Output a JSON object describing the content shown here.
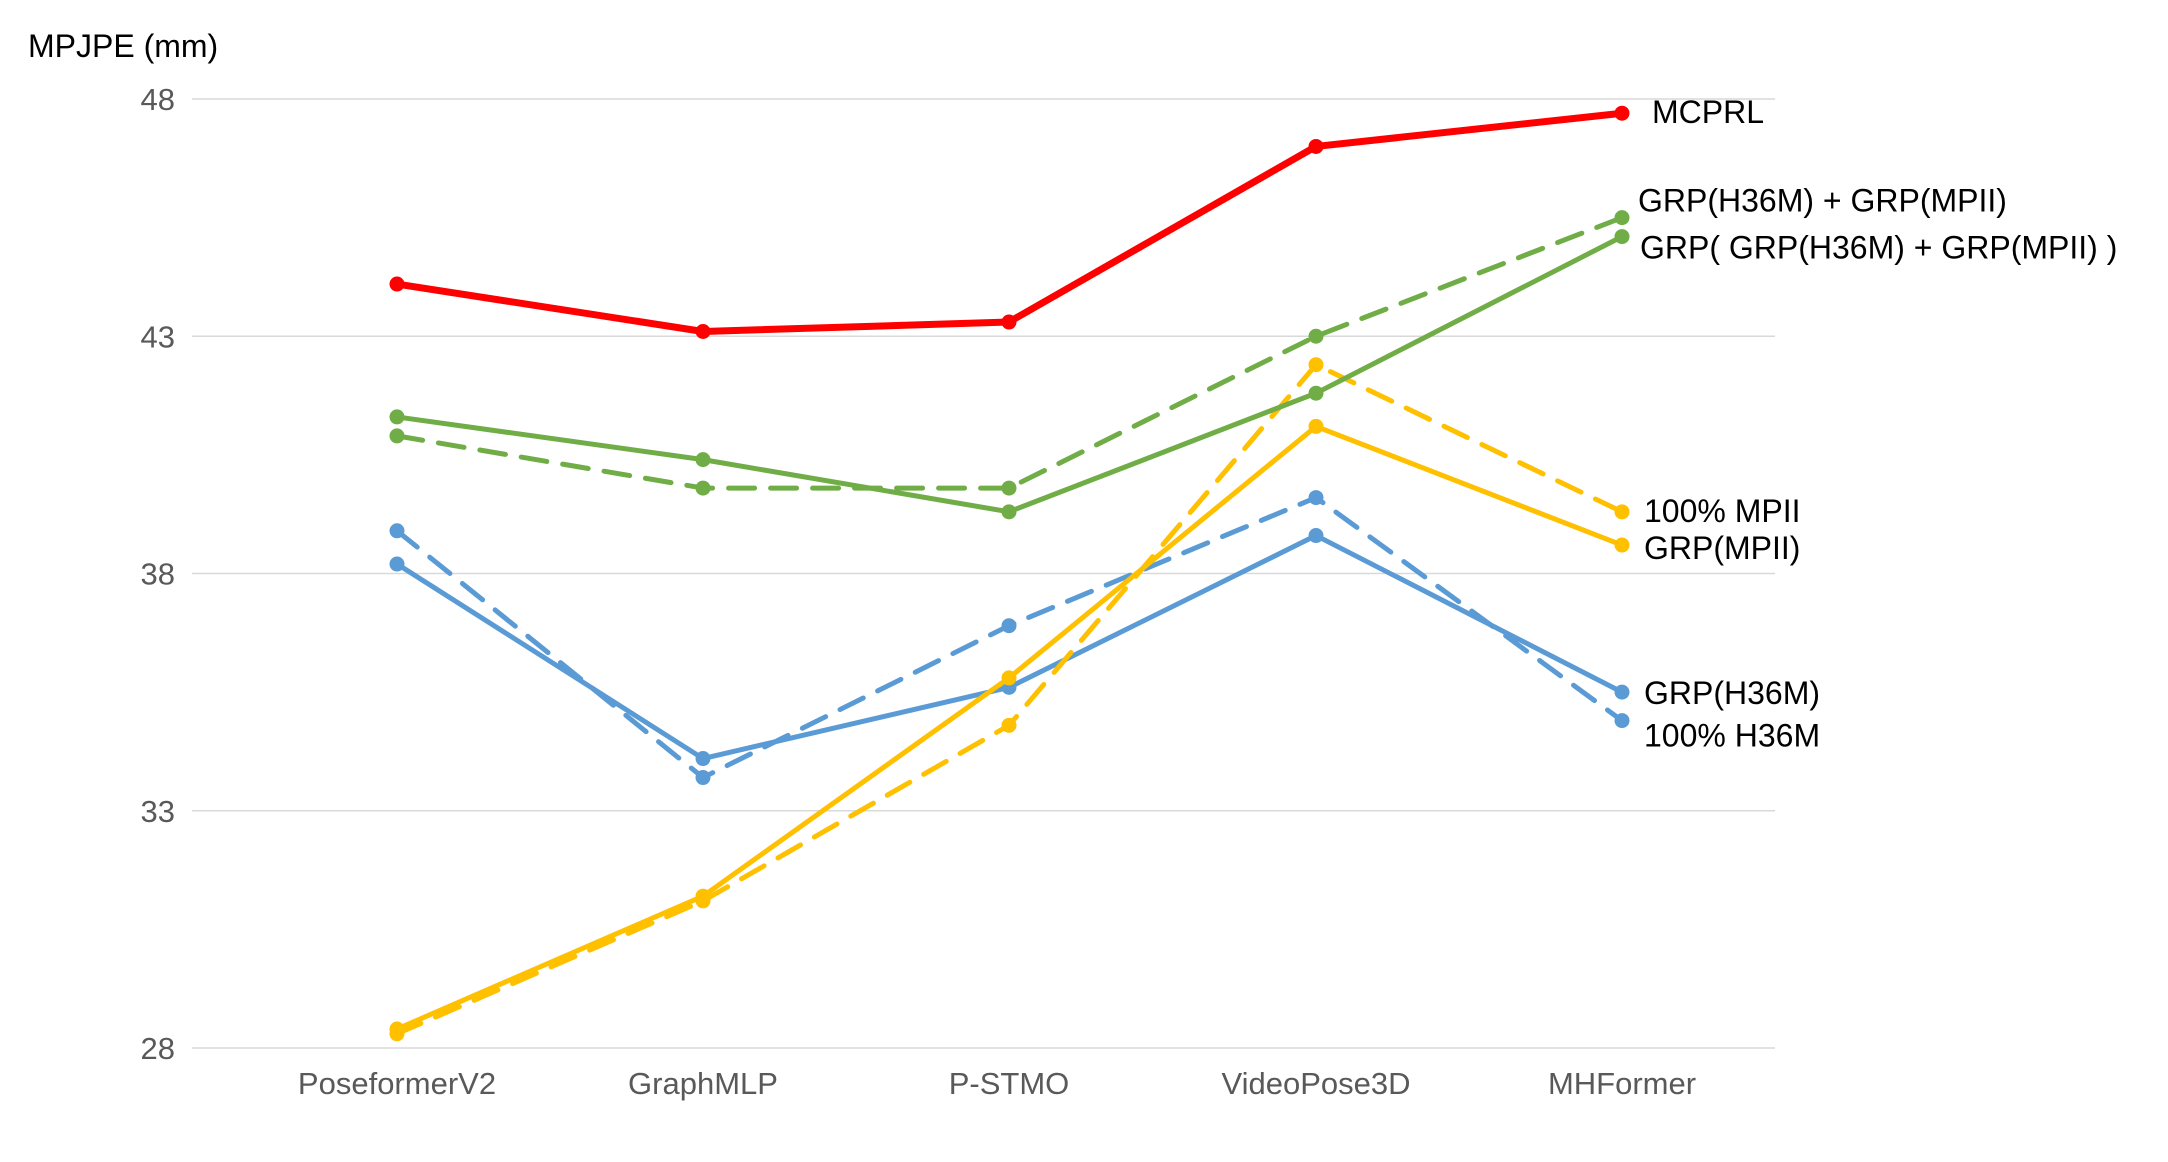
{
  "chart_data": {
    "type": "line",
    "ylabel": "MPJPE (mm)",
    "categories": [
      "PoseformerV2",
      "GraphMLP",
      "P-STMO",
      "VideoPose3D",
      "MHFormer"
    ],
    "ylim": [
      28,
      48
    ],
    "yticks": [
      28,
      33,
      38,
      43,
      48
    ],
    "grid": "horizontal",
    "series": [
      {
        "name": "MCPRL",
        "color": "#FF0000",
        "dash": false,
        "values": [
          44.1,
          43.1,
          43.3,
          47.0,
          47.7
        ]
      },
      {
        "name": "GRP(H36M) + GRP(MPII)",
        "color": "#70AD47",
        "dash": true,
        "values": [
          40.9,
          39.8,
          39.8,
          43.0,
          45.5
        ]
      },
      {
        "name": "GRP( GRP(H36M) + GRP(MPII) )",
        "color": "#70AD47",
        "dash": false,
        "values": [
          41.3,
          40.4,
          39.3,
          41.8,
          45.1
        ]
      },
      {
        "name": "100% MPII",
        "color": "#FFC000",
        "dash": true,
        "values": [
          28.3,
          31.1,
          34.8,
          42.4,
          39.3
        ]
      },
      {
        "name": "GRP(MPII)",
        "color": "#FFC000",
        "dash": false,
        "values": [
          28.4,
          31.2,
          35.8,
          41.1,
          38.6
        ]
      },
      {
        "name": "GRP(H36M)",
        "color": "#5B9BD5",
        "dash": false,
        "values": [
          38.2,
          34.1,
          35.6,
          38.8,
          35.5
        ]
      },
      {
        "name": "100% H36M",
        "color": "#5B9BD5",
        "dash": true,
        "values": [
          38.9,
          33.7,
          36.9,
          39.6,
          34.9
        ]
      }
    ]
  }
}
